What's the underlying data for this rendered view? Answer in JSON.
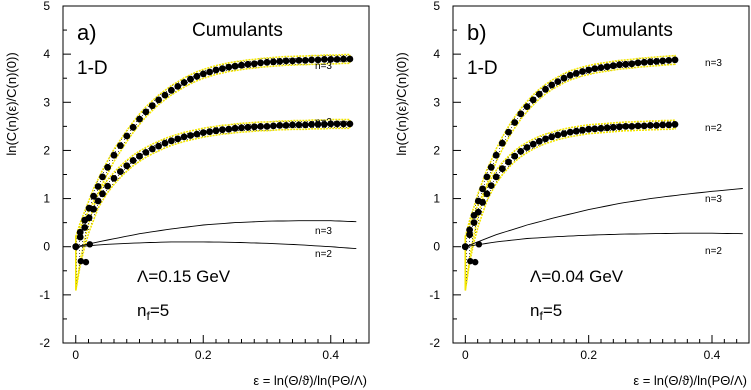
{
  "chart_data": [
    {
      "type": "line",
      "panel_label": "a)",
      "title": "Cumulants",
      "dimension": "1-D",
      "annotation_lambda": "Λ=0.15 GeV",
      "annotation_nf": "n",
      "annotation_nf_sub": "f",
      "annotation_nf_val": "=5",
      "xlabel": "ε = ln(Θ/ϑ)/ln(PΘ/Λ)",
      "ylabel": "ln(C(n)(ε)/C(n)(0))",
      "xlim": [
        -0.02,
        0.46
      ],
      "ylim": [
        -2,
        5
      ],
      "xticks": [
        0,
        0.2,
        0.4
      ],
      "yticks": [
        -2,
        -1,
        0,
        1,
        2,
        3,
        4,
        5
      ],
      "series": [
        {
          "name": "n=3",
          "kind": "data",
          "x": [
            0,
            0.007,
            0.014,
            0.021,
            0.028,
            0.035,
            0.042,
            0.05,
            0.06,
            0.07,
            0.08,
            0.09,
            0.1,
            0.11,
            0.12,
            0.13,
            0.14,
            0.15,
            0.16,
            0.17,
            0.18,
            0.19,
            0.2,
            0.21,
            0.22,
            0.23,
            0.24,
            0.25,
            0.26,
            0.27,
            0.28,
            0.29,
            0.3,
            0.31,
            0.32,
            0.33,
            0.34,
            0.35,
            0.36,
            0.37,
            0.38,
            0.39,
            0.4,
            0.41,
            0.42,
            0.43
          ],
          "y": [
            0,
            0.3,
            0.55,
            0.8,
            1.05,
            1.25,
            1.45,
            1.65,
            1.9,
            2.1,
            2.3,
            2.48,
            2.65,
            2.8,
            2.93,
            3.05,
            3.15,
            3.25,
            3.33,
            3.41,
            3.48,
            3.54,
            3.59,
            3.63,
            3.67,
            3.7,
            3.73,
            3.75,
            3.77,
            3.79,
            3.8,
            3.82,
            3.83,
            3.84,
            3.85,
            3.86,
            3.86,
            3.87,
            3.87,
            3.88,
            3.88,
            3.89,
            3.89,
            3.89,
            3.9,
            3.9
          ]
        },
        {
          "name": "n=2",
          "kind": "data",
          "x": [
            0,
            0.007,
            0.014,
            0.021,
            0.028,
            0.035,
            0.042,
            0.05,
            0.06,
            0.07,
            0.08,
            0.09,
            0.1,
            0.11,
            0.12,
            0.13,
            0.14,
            0.15,
            0.16,
            0.17,
            0.18,
            0.19,
            0.2,
            0.21,
            0.22,
            0.23,
            0.24,
            0.25,
            0.26,
            0.27,
            0.28,
            0.29,
            0.3,
            0.31,
            0.32,
            0.33,
            0.34,
            0.35,
            0.36,
            0.37,
            0.38,
            0.39,
            0.4,
            0.41,
            0.42,
            0.43
          ],
          "y": [
            0,
            0.2,
            0.4,
            0.6,
            0.78,
            0.95,
            1.1,
            1.26,
            1.42,
            1.56,
            1.68,
            1.79,
            1.88,
            1.96,
            2.03,
            2.09,
            2.15,
            2.2,
            2.24,
            2.28,
            2.31,
            2.34,
            2.37,
            2.39,
            2.41,
            2.43,
            2.44,
            2.46,
            2.47,
            2.48,
            2.49,
            2.5,
            2.5,
            2.51,
            2.52,
            2.52,
            2.53,
            2.53,
            2.53,
            2.54,
            2.54,
            2.54,
            2.55,
            2.55,
            2.55,
            2.55
          ]
        },
        {
          "name": "n=3",
          "kind": "theory",
          "x": [
            0,
            0.05,
            0.1,
            0.15,
            0.2,
            0.25,
            0.3,
            0.35,
            0.4,
            0.44
          ],
          "y": [
            0,
            0.14,
            0.27,
            0.37,
            0.45,
            0.5,
            0.53,
            0.54,
            0.54,
            0.52
          ]
        },
        {
          "name": "n=2",
          "kind": "theory",
          "x": [
            0,
            0.05,
            0.1,
            0.15,
            0.2,
            0.25,
            0.3,
            0.35,
            0.4,
            0.44
          ],
          "y": [
            0,
            0.05,
            0.08,
            0.1,
            0.1,
            0.09,
            0.07,
            0.04,
            0.0,
            -0.04
          ]
        }
      ]
    },
    {
      "type": "line",
      "panel_label": "b)",
      "title": "Cumulants",
      "dimension": "1-D",
      "annotation_lambda": "Λ=0.04 GeV",
      "annotation_nf": "n",
      "annotation_nf_sub": "f",
      "annotation_nf_val": "=5",
      "xlabel": "ε = ln(Θ/ϑ)/ln(PΘ/Λ)",
      "ylabel": "ln(C(n)(ε)/C(n)(0))",
      "xlim": [
        -0.02,
        0.46
      ],
      "ylim": [
        -2,
        5
      ],
      "xticks": [
        0,
        0.2,
        0.4
      ],
      "yticks": [
        -2,
        -1,
        0,
        1,
        2,
        3,
        4,
        5
      ],
      "series": [
        {
          "name": "n=3",
          "kind": "data",
          "x": [
            0,
            0.007,
            0.014,
            0.021,
            0.028,
            0.035,
            0.042,
            0.05,
            0.06,
            0.07,
            0.08,
            0.09,
            0.1,
            0.11,
            0.12,
            0.13,
            0.14,
            0.15,
            0.16,
            0.17,
            0.18,
            0.19,
            0.2,
            0.21,
            0.22,
            0.23,
            0.24,
            0.25,
            0.26,
            0.27,
            0.28,
            0.29,
            0.3,
            0.31,
            0.32,
            0.33,
            0.34
          ],
          "y": [
            0,
            0.35,
            0.65,
            0.95,
            1.2,
            1.45,
            1.65,
            1.9,
            2.15,
            2.38,
            2.58,
            2.76,
            2.91,
            3.05,
            3.17,
            3.27,
            3.36,
            3.43,
            3.5,
            3.56,
            3.6,
            3.64,
            3.67,
            3.7,
            3.72,
            3.74,
            3.76,
            3.78,
            3.79,
            3.8,
            3.82,
            3.83,
            3.84,
            3.85,
            3.86,
            3.87,
            3.88
          ]
        },
        {
          "name": "n=2",
          "kind": "data",
          "x": [
            0,
            0.007,
            0.014,
            0.021,
            0.028,
            0.035,
            0.042,
            0.05,
            0.06,
            0.07,
            0.08,
            0.09,
            0.1,
            0.11,
            0.12,
            0.13,
            0.14,
            0.15,
            0.16,
            0.17,
            0.18,
            0.19,
            0.2,
            0.21,
            0.22,
            0.23,
            0.24,
            0.25,
            0.26,
            0.27,
            0.28,
            0.29,
            0.3,
            0.31,
            0.32,
            0.33,
            0.34
          ],
          "y": [
            0,
            0.25,
            0.5,
            0.72,
            0.92,
            1.1,
            1.27,
            1.45,
            1.62,
            1.76,
            1.88,
            1.98,
            2.06,
            2.13,
            2.19,
            2.24,
            2.28,
            2.32,
            2.35,
            2.38,
            2.4,
            2.42,
            2.44,
            2.45,
            2.46,
            2.47,
            2.48,
            2.49,
            2.5,
            2.5,
            2.51,
            2.51,
            2.52,
            2.52,
            2.53,
            2.53,
            2.54
          ]
        },
        {
          "name": "n=3",
          "kind": "theory",
          "x": [
            0,
            0.05,
            0.1,
            0.15,
            0.2,
            0.25,
            0.3,
            0.35,
            0.4,
            0.45
          ],
          "y": [
            0,
            0.25,
            0.45,
            0.62,
            0.77,
            0.9,
            1.0,
            1.08,
            1.15,
            1.21
          ]
        },
        {
          "name": "n=2",
          "kind": "theory",
          "x": [
            0,
            0.05,
            0.1,
            0.15,
            0.2,
            0.25,
            0.3,
            0.35,
            0.4,
            0.45
          ],
          "y": [
            0,
            0.1,
            0.17,
            0.21,
            0.24,
            0.26,
            0.27,
            0.28,
            0.28,
            0.27
          ]
        }
      ]
    }
  ]
}
